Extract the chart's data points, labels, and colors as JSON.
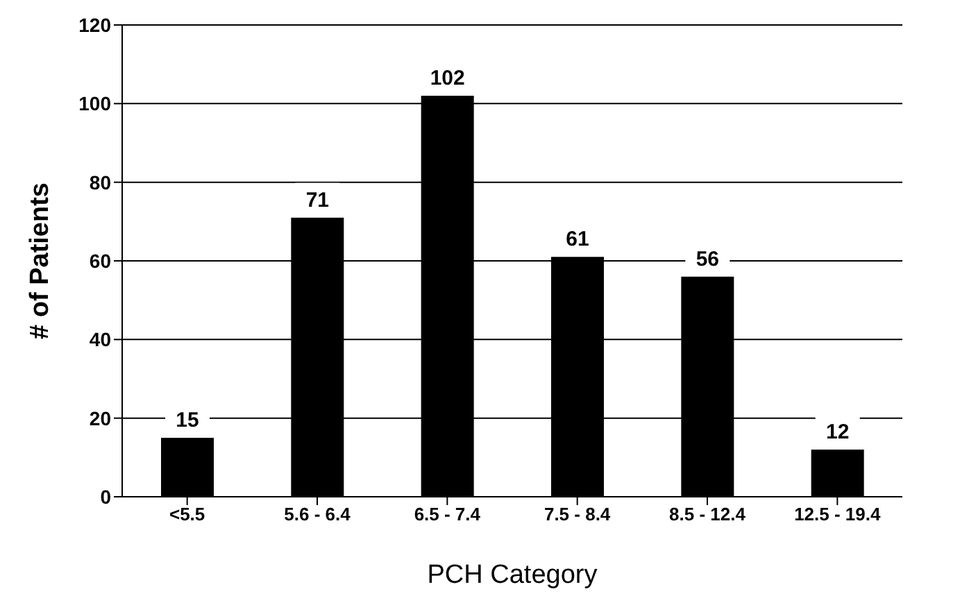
{
  "chart_data": {
    "type": "bar",
    "xlabel": "PCH Category",
    "ylabel": "# of Patients",
    "categories": [
      "<5.5",
      "5.6 - 6.4",
      "6.5 - 7.4",
      "7.5 - 8.4",
      "8.5 - 12.4",
      "12.5 - 19.4"
    ],
    "values": [
      15,
      71,
      102,
      61,
      56,
      12
    ],
    "color": "#000000",
    "ylim": [
      0,
      120
    ],
    "yticks": [
      0,
      20,
      40,
      60,
      80,
      100,
      120
    ],
    "grid": "y",
    "data_labels": true
  }
}
